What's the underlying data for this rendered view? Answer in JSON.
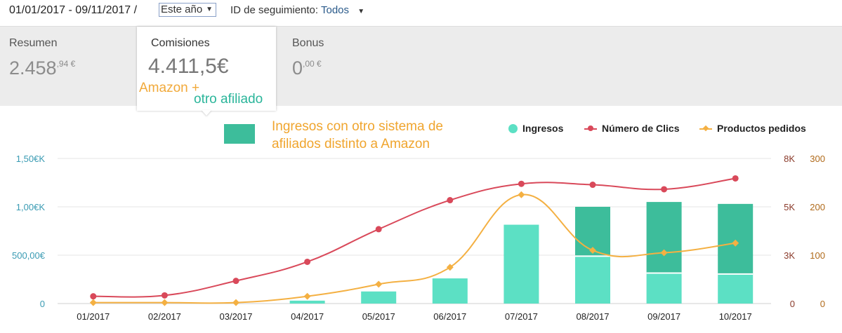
{
  "header": {
    "date_range": "01/01/2017 - 09/11/2017 /",
    "period_select": "Este año",
    "tracking_label": "ID de seguimiento:",
    "tracking_value": "Todos"
  },
  "summary": {
    "resumen": {
      "label": "Resumen",
      "int": "2.458",
      "dec": ",94 €"
    },
    "comisiones": {
      "label": "Comisiones",
      "value": "4.411,5€"
    },
    "bonus": {
      "label": "Bonus",
      "int": "0",
      "dec": ",00 €"
    }
  },
  "annotations": {
    "amazon_plus": "Amazon +",
    "otro_afiliado": "otro afiliado",
    "ingresos_note": "Ingresos con otro sistema de afiliados distinto a Amazon"
  },
  "colors": {
    "ingresos": "#5ce0c4",
    "ingresos_otro": "#3dbd9b",
    "clics": "#d9495a",
    "productos": "#f4b042"
  },
  "chart_data": {
    "type": "bar",
    "categories": [
      "01/2017",
      "02/2017",
      "03/2017",
      "04/2017",
      "05/2017",
      "06/2017",
      "07/2017",
      "08/2017",
      "09/2017",
      "10/2017"
    ],
    "series": [
      {
        "name": "Ingresos",
        "type": "bar",
        "axis": "left",
        "values": [
          0,
          0,
          0,
          30,
          125,
          260,
          815,
          490,
          315,
          305
        ]
      },
      {
        "name": "Ingresos con otro sistema de afiliados distinto a Amazon",
        "type": "bar",
        "axis": "left",
        "stacked": true,
        "values": [
          0,
          0,
          0,
          0,
          0,
          0,
          0,
          510,
          735,
          725
        ]
      },
      {
        "name": "Número de Clics",
        "type": "line",
        "axis": "right1",
        "values": [
          400,
          450,
          1250,
          2300,
          4100,
          5700,
          6600,
          6550,
          6300,
          6900
        ]
      },
      {
        "name": "Productos pedidos",
        "type": "line",
        "axis": "right2",
        "values": [
          2,
          2,
          2,
          15,
          40,
          75,
          225,
          110,
          105,
          125
        ]
      }
    ],
    "axes": {
      "left": {
        "ticks": [
          "0",
          "500,00€",
          "1,00€K",
          "1,50€K"
        ],
        "range": [
          0,
          1500
        ]
      },
      "right1": {
        "ticks": [
          "0",
          "3K",
          "5K",
          "8K"
        ],
        "range": [
          0,
          8000
        ]
      },
      "right2": {
        "ticks": [
          "0",
          "100",
          "200",
          "300"
        ],
        "range": [
          0,
          300
        ]
      }
    },
    "legend": [
      "Ingresos",
      "Número de Clics",
      "Productos pedidos"
    ],
    "legend_position": "top-right"
  }
}
